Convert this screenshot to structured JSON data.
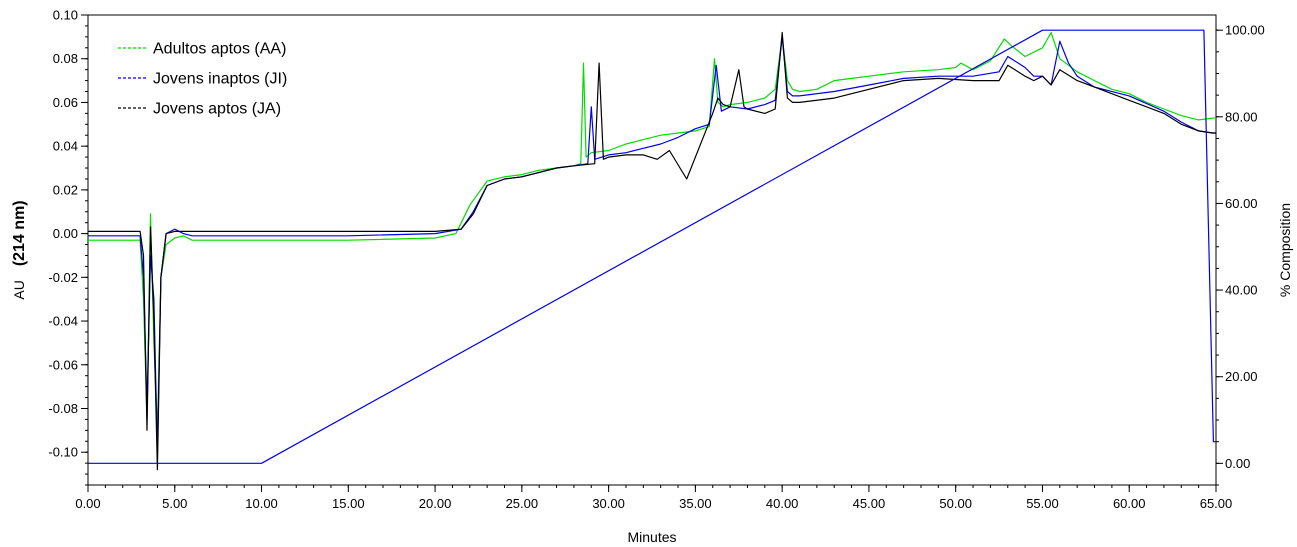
{
  "chart_data": {
    "type": "line",
    "xlabel": "Minutes",
    "ylabel_prefix": "AU",
    "ylabel_bold": "(214 nm)",
    "y2label": "% Composition",
    "xlim": [
      0,
      65
    ],
    "ylim": [
      -0.115,
      0.1
    ],
    "y2lim": [
      -5,
      103.5
    ],
    "x_ticks": [
      0,
      5,
      10,
      15,
      20,
      25,
      30,
      35,
      40,
      45,
      50,
      55,
      60,
      65
    ],
    "x_tick_labels": [
      "0.00",
      "5.00",
      "10.00",
      "15.00",
      "20.00",
      "25.00",
      "30.00",
      "35.00",
      "40.00",
      "45.00",
      "50.00",
      "55.00",
      "60.00",
      "65.00"
    ],
    "y_ticks": [
      0.1,
      0.08,
      0.06,
      0.04,
      0.02,
      0.0,
      -0.02,
      -0.04,
      -0.06,
      -0.08,
      -0.1
    ],
    "y_tick_labels": [
      "0.10",
      "0.08",
      "0.06",
      "0.04",
      "0.02",
      "0.00",
      "-0.02",
      "-0.04",
      "-0.06",
      "-0.08",
      "-0.10"
    ],
    "y2_ticks": [
      100,
      80,
      60,
      40,
      20,
      0
    ],
    "y2_tick_labels": [
      "100.00",
      "80.00",
      "60.00",
      "40.00",
      "20.00",
      "0.00"
    ],
    "legend_position": "top-left",
    "grid": false,
    "series": [
      {
        "name": "Adultos aptos (AA)",
        "color": "#00dd00",
        "axis": "left",
        "x": [
          0,
          3.0,
          3.2,
          3.4,
          3.6,
          3.8,
          4.0,
          4.2,
          4.5,
          5.0,
          5.5,
          6.0,
          10,
          15,
          20,
          21.2,
          22,
          23,
          24,
          25,
          26,
          27,
          28,
          28.4,
          28.55,
          28.7,
          29,
          30,
          31,
          32,
          33,
          34,
          35,
          35.8,
          36.1,
          36.3,
          36.6,
          37,
          38,
          39,
          39.6,
          40.0,
          40.3,
          40.6,
          41,
          42,
          43,
          44,
          45,
          47,
          49,
          50,
          50.3,
          51,
          52,
          52.8,
          53.2,
          54,
          55,
          55.5,
          56,
          57,
          58,
          59,
          60,
          61,
          62,
          63,
          64,
          65
        ],
        "y": [
          -0.003,
          -0.003,
          -0.03,
          -0.085,
          0.009,
          -0.05,
          -0.09,
          -0.02,
          -0.005,
          -0.002,
          -0.001,
          -0.003,
          -0.003,
          -0.003,
          -0.002,
          0.0,
          0.013,
          0.024,
          0.026,
          0.027,
          0.029,
          0.03,
          0.031,
          0.032,
          0.078,
          0.035,
          0.037,
          0.038,
          0.041,
          0.043,
          0.045,
          0.046,
          0.047,
          0.049,
          0.08,
          0.06,
          0.058,
          0.059,
          0.06,
          0.062,
          0.066,
          0.09,
          0.07,
          0.066,
          0.065,
          0.066,
          0.07,
          0.071,
          0.072,
          0.074,
          0.075,
          0.076,
          0.078,
          0.075,
          0.079,
          0.089,
          0.086,
          0.081,
          0.085,
          0.092,
          0.08,
          0.074,
          0.07,
          0.066,
          0.064,
          0.06,
          0.057,
          0.054,
          0.052,
          0.053
        ]
      },
      {
        "name": "Jovens inaptos (JI)",
        "color": "#0000ee",
        "axis": "left",
        "x": [
          0,
          3.0,
          3.2,
          3.4,
          3.6,
          3.8,
          4.0,
          4.2,
          4.5,
          5.0,
          5.5,
          6.0,
          10,
          15,
          20,
          21.5,
          22.2,
          23,
          24,
          25,
          26,
          27,
          28,
          28.8,
          29.0,
          29.2,
          30,
          31,
          32,
          33,
          34,
          35,
          35.8,
          36.2,
          36.5,
          37,
          38,
          39,
          39.6,
          40.0,
          40.3,
          40.6,
          41,
          43,
          45,
          47,
          49,
          51,
          52.5,
          53,
          54,
          54.5,
          55,
          55.5,
          56,
          56.5,
          57,
          58,
          60,
          62,
          63,
          64,
          64.8,
          65
        ],
        "y": [
          -0.001,
          -0.001,
          -0.02,
          -0.08,
          -0.01,
          -0.03,
          -0.1,
          -0.02,
          0.0,
          0.002,
          0.0,
          -0.001,
          -0.001,
          -0.001,
          0.0,
          0.002,
          0.01,
          0.022,
          0.025,
          0.026,
          0.028,
          0.03,
          0.031,
          0.032,
          0.058,
          0.034,
          0.036,
          0.037,
          0.039,
          0.041,
          0.044,
          0.048,
          0.05,
          0.077,
          0.056,
          0.058,
          0.057,
          0.059,
          0.061,
          0.09,
          0.065,
          0.063,
          0.063,
          0.065,
          0.068,
          0.071,
          0.072,
          0.072,
          0.074,
          0.081,
          0.076,
          0.072,
          0.072,
          0.068,
          0.088,
          0.078,
          0.072,
          0.067,
          0.063,
          0.056,
          0.051,
          0.047,
          0.046,
          0.046
        ]
      },
      {
        "name": "Jovens aptos (JA)",
        "color": "#000000",
        "axis": "left",
        "x": [
          0,
          3.0,
          3.2,
          3.4,
          3.6,
          3.8,
          4.0,
          4.2,
          4.5,
          5.0,
          5.5,
          6.0,
          10,
          15,
          20,
          21.5,
          22.2,
          23,
          24,
          25,
          26,
          27,
          28,
          29.2,
          29.45,
          29.7,
          30,
          31,
          32,
          32.8,
          33.5,
          34.5,
          35.5,
          36,
          36.3,
          36.6,
          37,
          37.5,
          37.8,
          38,
          39,
          39.6,
          40.0,
          40.3,
          40.6,
          41,
          43,
          45,
          47,
          49,
          51,
          52.5,
          53,
          54,
          54.5,
          55,
          55.5,
          56,
          57,
          58,
          60,
          62,
          63,
          64,
          64.8,
          65
        ],
        "y": [
          0.001,
          0.001,
          -0.01,
          -0.09,
          0.003,
          -0.04,
          -0.108,
          -0.02,
          0.0,
          0.001,
          0.001,
          0.001,
          0.001,
          0.001,
          0.001,
          0.002,
          0.009,
          0.022,
          0.025,
          0.026,
          0.028,
          0.03,
          0.031,
          0.032,
          0.078,
          0.034,
          0.035,
          0.036,
          0.036,
          0.034,
          0.038,
          0.025,
          0.045,
          0.055,
          0.062,
          0.059,
          0.058,
          0.075,
          0.058,
          0.057,
          0.055,
          0.057,
          0.092,
          0.062,
          0.06,
          0.06,
          0.062,
          0.066,
          0.07,
          0.071,
          0.07,
          0.07,
          0.077,
          0.072,
          0.07,
          0.072,
          0.068,
          0.075,
          0.07,
          0.067,
          0.061,
          0.055,
          0.05,
          0.047,
          0.046,
          0.046
        ]
      },
      {
        "color": "#0000ee",
        "axis": "right",
        "x": [
          0,
          10,
          55,
          64.3,
          64.85,
          65
        ],
        "y": [
          0,
          0,
          100,
          100,
          5,
          5
        ]
      }
    ]
  }
}
